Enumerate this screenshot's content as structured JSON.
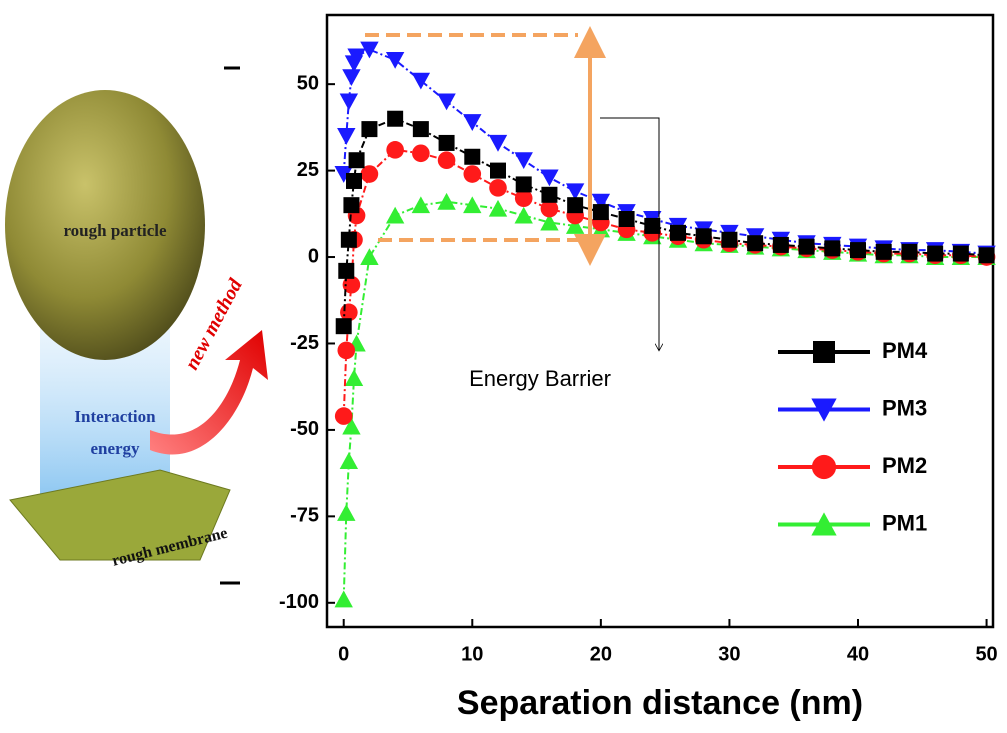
{
  "illustration": {
    "particle_label": "rough particle",
    "energy_label_line1": "Interaction",
    "energy_label_line2": "energy",
    "membrane_label": "rough membrane",
    "arrow_label": "new method"
  },
  "chart_data": {
    "type": "scatter-line",
    "xlabel": "Separation distance (nm)",
    "annotation": "Energy Barrier",
    "xlim": [
      -1.3,
      50.5
    ],
    "ylim": [
      -107,
      70
    ],
    "xticks": [
      0,
      10,
      20,
      30,
      40,
      50
    ],
    "yticks": [
      -100,
      -75,
      -50,
      -25,
      0,
      25,
      50
    ],
    "legend": "right",
    "x": [
      0,
      0.2,
      0.4,
      0.6,
      0.8,
      1,
      2,
      4,
      6,
      8,
      10,
      12,
      14,
      16,
      18,
      20,
      22,
      24,
      26,
      28,
      30,
      32,
      34,
      36,
      38,
      40,
      42,
      44,
      46,
      48,
      50
    ],
    "series": [
      {
        "name": "PM4",
        "color": "#000000",
        "marker": "square",
        "values": [
          -20,
          -4,
          5,
          15,
          22,
          28,
          37,
          40,
          37,
          33,
          29,
          25,
          21,
          18,
          15,
          13,
          11,
          9,
          7,
          6,
          5,
          4,
          3.5,
          3,
          2.5,
          2,
          1.5,
          1.5,
          1,
          1,
          0.5
        ]
      },
      {
        "name": "PM3",
        "color": "#1a1aff",
        "marker": "triangle-down",
        "values": [
          24,
          35,
          45,
          52,
          56,
          58,
          60,
          57,
          51,
          45,
          39,
          33,
          28,
          23,
          19,
          16,
          13,
          11,
          9,
          8,
          7,
          6,
          5,
          4,
          3.5,
          3,
          2.5,
          2,
          2,
          1.5,
          1
        ]
      },
      {
        "name": "PM2",
        "color": "#ff1a1a",
        "marker": "circle",
        "values": [
          -46,
          -27,
          -16,
          -8,
          5,
          12,
          24,
          31,
          30,
          28,
          24,
          20,
          17,
          14,
          12,
          10,
          8,
          7,
          6,
          5,
          4,
          3.5,
          3,
          2.5,
          2,
          1.5,
          1,
          1,
          0.5,
          0.5,
          0
        ]
      },
      {
        "name": "PM1",
        "color": "#33ee33",
        "marker": "triangle-up",
        "values": [
          -99,
          -74,
          -59,
          -49,
          -35,
          -25,
          0,
          12,
          15,
          16,
          15,
          14,
          12,
          10,
          9,
          8,
          7,
          6,
          5,
          4,
          3.5,
          3,
          2.5,
          2,
          1.5,
          1,
          0.5,
          0.5,
          0,
          0,
          0
        ]
      }
    ]
  }
}
